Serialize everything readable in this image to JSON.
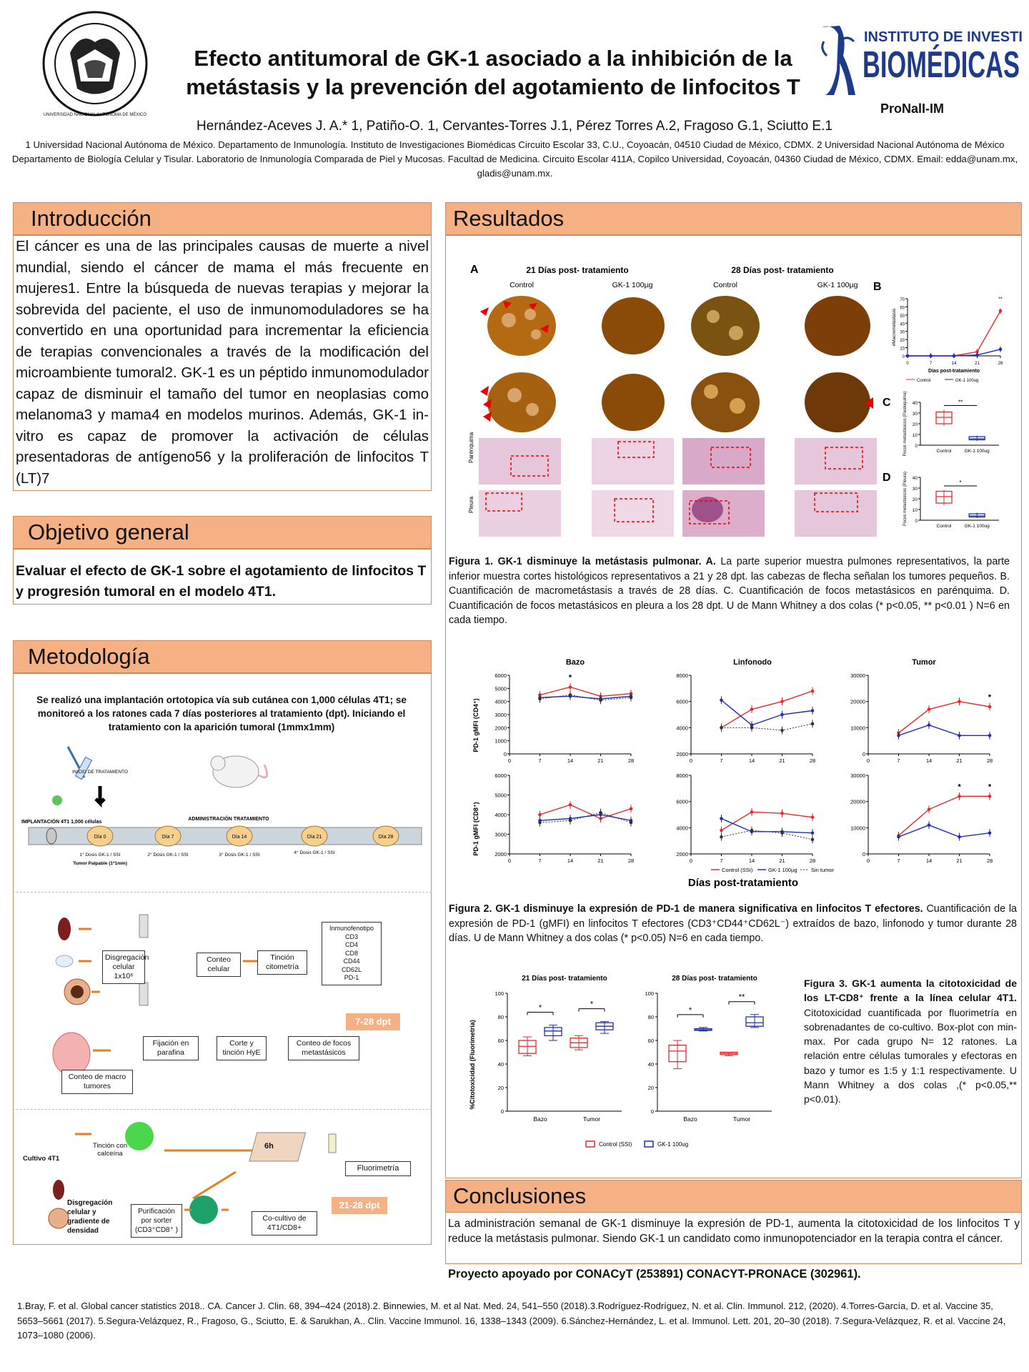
{
  "header": {
    "title_line1": "Efecto antitumoral de GK-1 asociado a la inhibición de la",
    "title_line2": "metástasis y la prevención  del agotamiento de linfocitos T",
    "authors": "Hernández-Aceves J. A.* 1, Patiño-O. 1, Cervantes-Torres J.1, Pérez Torres A.2, Fragoso G.1, Sciutto E.1",
    "affiliation": "1 Universidad Nacional Autónoma de México. Departamento de Inmunología. Instituto de Investigaciones Biomédicas Circuito Escolar 33, C.U., Coyoacán, 04510 Ciudad de México, CDMX. 2 Universidad Nacional Autónoma de México Departamento de Biología Celular y Tisular. Laboratorio de Inmunología Comparada de Piel y Mucosas. Facultad de Medicina. Circuito Escolar 411A, Copilco Universidad, Coyoacán, 04360 Ciudad de México, CDMX. Email: edda@unam.mx, gladis@unam.mx.",
    "logo_right_line1": "INSTITUTO DE INVESTIGACIONES",
    "logo_right_line2": "BIOMÉDICAS",
    "logo_left_text": "UNIVERSIDAD NACIONAL AUTÓNOMA DE MÉXICO",
    "logo_left_motto": "POR MI RAZA HABLARÁ EL ESPÍRITU",
    "program": "ProNalI-IM"
  },
  "intro": {
    "heading": "Introducción",
    "text": "El cáncer es una de las principales causas de muerte a nivel mundial, siendo el cáncer de mama el más frecuente en mujeres1. Entre la búsqueda de nuevas terapias y mejorar la sobrevida del paciente, el uso de inmunomoduladores se ha convertido en una oportunidad para incrementar la eficiencia de terapias convencionales a través de la modificación del microambiente tumoral2. GK-1 es un péptido inmunomodulador capaz de disminuir el tamaño del tumor  en neoplasias como melanoma3 y mama4 en modelos murinos. Además, GK-1 in-vitro es capaz de promover la activación de células presentadoras de antígeno56 y la proliferación de linfocitos T (LT)7"
  },
  "objective": {
    "heading": "Objetivo general",
    "text": "Evaluar el efecto de GK-1  sobre el agotamiento de linfocitos T y progresión tumoral en el modelo 4T1."
  },
  "methods": {
    "heading": "Metodología",
    "intro": "Se realizó una implantación ortotopica vía sub cutánea con 1,000 células 4T1; se monitoreó a los ratones cada 7 días posteriores al tratamiento (dpt). Iniciando el tratamiento con la aparición tumoral (1mmx1mm)",
    "timeline": {
      "start_label": "INICIO DE TRATAMIENTO",
      "implant_label": "IMPLANTACIÓN 4T1  1,000 células",
      "treat_label": "ADMINISTRACIÓN TRATAMIENTO",
      "days": [
        "Día 0",
        "Día 7",
        "Día 14",
        "Día 21",
        "Día 28"
      ],
      "doses": [
        "1° Dosis GK-1 / SSI",
        "2° Dosis GK-1 / SSI",
        "3° Dosis GK-1 / SSI",
        "4° Dosis GK-1 / SSI"
      ],
      "palpable": "Tumor Palpable (1*1mm)"
    },
    "flow1": {
      "disgreg": "Disgregación celular 1x10⁶",
      "conteo": "Conteo celular",
      "tincion": "Tinción citometría",
      "inmuno_title": "Inmunofenotipo",
      "markers": [
        "CD3",
        "CD4",
        "CD8",
        "CD44",
        "CD62L",
        "PD-1"
      ],
      "fijacion": "Fijación en parafina",
      "corte": "Corte y tinción HyE",
      "conteo_focos": "Conteo de focos metastásicos",
      "conteo_macro": "Conteo de macro tumores",
      "badge": "7-28 dpt"
    },
    "flow2": {
      "cultivo": "Cultivo 4T1",
      "tincion_calceina": "Tinción con calceína",
      "hours": "6h",
      "fluorimetria": "Fluorimetría",
      "disgregacion": "Disgregación celular y gradiente de densidad",
      "purificacion": "Purificación por sorter (CD3⁺CD8⁺ )",
      "cocultivo": "Co-cultivo de 4T1/CD8+",
      "badge": "21-28 dpt"
    }
  },
  "results": {
    "heading": "Resultados",
    "fig1": {
      "panel_a": "A",
      "panel_b": "B",
      "panel_c": "C",
      "panel_d": "D",
      "col_21": "21 Días post- tratamiento",
      "col_28": "28 Días post- tratamiento",
      "control": "Control",
      "gk1": "GK-1 100µg",
      "row_parenquima": "Parénquima",
      "row_pleura": "Pleura",
      "caption_bold": "Figura 1. GK-1 disminuye la metástasis pulmonar. A.",
      "caption": "  La parte superior muestra pulmones representativos, la parte inferior muestra cortes histológicos representativos a 21 y 28 dpt. las cabezas de flecha señalan los tumores pequeños. B. Cuantificación de macrometástasis a través de 28 días. C. Cuantificación de focos metastásicos en parénquima. D. Cuantificación de focos metastásicos en pleura a los 28 dpt. U de Mann Whitney a dos colas (* p<0.05, ** p<0.01 ) N=6 en cada tiempo."
    },
    "fig2": {
      "col_titles": [
        "Bazo",
        "Linfonodo",
        "Tumor"
      ],
      "y_top": "PD-1 gMFI  (CD4⁺)",
      "y_bottom": "PD-1 gMFI (CD8⁺)",
      "x_title": "Días post-tratamiento",
      "legend": [
        "Control (SSI)",
        "GK-1 100µg",
        "Sin tumor"
      ],
      "caption_bold": "Figura 2. GK-1 disminuye la expresión de PD-1 de manera significativa en linfocitos T efectores.",
      "caption": " Cuantificación de la expresión de PD-1 (gMFI) en linfocitos T efectores (CD3⁺CD44⁺CD62L⁻) extraídos de bazo, linfonodo y tumor durante 28 días. U de Mann Whitney a dos colas (* p<0.05) N=6 en cada tiempo."
    },
    "fig3": {
      "title_21": "21 Días post- tratamiento",
      "title_28": "28 Días post- tratamiento",
      "ylabel": "%Citotoxicidad (Fluorimetría)",
      "categories": [
        "Bazo",
        "Tumor"
      ],
      "legend": [
        "Control (SSI)",
        "GK-1 100ug"
      ],
      "caption_bold": "Figura 3. GK-1 aumenta la citotoxicidad de los LT-CD8⁺ frente a la línea celular 4T1.",
      "caption": " Citotoxicidad cuantificada por fluorimetría en sobrenadantes de co-cultivo. Box-plot con min-max. Por cada grupo N= 12 ratones. La relación entre células tumorales y efectoras en bazo y tumor es 1:5 y 1:1 respectivamente. U Mann Whitney a dos colas ,(* p<0.05,** p<0.01)."
    }
  },
  "conclusions": {
    "heading": "Conclusiones",
    "text": "La administración semanal de GK-1 disminuye la expresión de PD-1, aumenta la citotoxicidad de los linfocitos T y reduce la metástasis pulmonar. Siendo GK-1 un candidato como inmunopotenciador en la terapia contra el cáncer.",
    "funding": "Proyecto apoyado por CONACyT (253891)  CONACYT-PRONACE (302961)."
  },
  "references": "1.Bray, F. et al. Global cancer statistics 2018.. CA. Cancer J. Clin. 68, 394–424 (2018).2. Binnewies, M. et al Nat. Med. 24, 541–550 (2018).3.Rodríguez-Rodríguez, N. et al.  Clin. Immunol. 212, (2020). 4.Torres-García, D. et al. Vaccine 35, 5653–5661 (2017). 5.Segura-Velázquez, R., Fragoso, G., Sciutto, E. & Sarukhan, A.. Clin. Vaccine Immunol. 16, 1338–1343 (2009). 6.Sánchez-Hernández, L. et al. Immunol. Lett. 201, 20–30 (2018). 7.Segura-Velázquez, R. et al. Vaccine 24, 1073–1080 (2006).",
  "colors": {
    "section_header": "#f5b183",
    "control": "#e8282b",
    "gk1": "#1f2fb4",
    "sin_tumor": "#333333",
    "badge": "#f5b183"
  },
  "chart_data": [
    {
      "type": "line",
      "id": "fig1b",
      "ylabel": "#Macrometástasis",
      "xlabel": "Días post-tratamiento",
      "x": [
        0,
        7,
        14,
        21,
        28
      ],
      "ylim": [
        0,
        70
      ],
      "yticks": [
        0,
        10,
        20,
        30,
        40,
        50,
        60,
        70
      ],
      "series": [
        {
          "name": "Control",
          "values": [
            0,
            0,
            0,
            5,
            55
          ]
        },
        {
          "name": "GK-1 100ug",
          "values": [
            0,
            0,
            0,
            1,
            8
          ]
        }
      ],
      "annotations": [
        "**"
      ]
    },
    {
      "type": "box",
      "id": "fig1c",
      "ylabel": "Focos metastásicos (Parénquima)",
      "categories": [
        "Control",
        "GK-1 100ug"
      ],
      "ylim": [
        0,
        40
      ],
      "yticks": [
        0,
        10,
        20,
        30,
        40
      ],
      "boxes": [
        {
          "min": 18,
          "q1": 20,
          "median": 26,
          "q3": 31,
          "max": 33
        },
        {
          "min": 4,
          "q1": 5,
          "median": 6,
          "q3": 8,
          "max": 9
        }
      ],
      "annotations": [
        "**"
      ]
    },
    {
      "type": "box",
      "id": "fig1d",
      "ylabel": "Focos metastásicos (Pleura)",
      "categories": [
        "Control",
        "GK-1 100ug"
      ],
      "ylim": [
        0,
        40
      ],
      "yticks": [
        0,
        10,
        20,
        30,
        40
      ],
      "boxes": [
        {
          "min": 14,
          "q1": 16,
          "median": 22,
          "q3": 27,
          "max": 28
        },
        {
          "min": 2,
          "q1": 3,
          "median": 4,
          "q3": 6,
          "max": 7
        }
      ],
      "annotations": [
        "*"
      ]
    },
    {
      "type": "line",
      "id": "fig2-bazo-cd4",
      "title": "Bazo",
      "x": [
        7,
        14,
        21,
        28
      ],
      "ylim": [
        0,
        6000
      ],
      "yticks": [
        0,
        1000,
        2000,
        3000,
        4000,
        5000,
        6000
      ],
      "series": [
        {
          "name": "Control (SSI)",
          "values": [
            4500,
            5100,
            4400,
            4600
          ]
        },
        {
          "name": "GK-1 100µg",
          "values": [
            4300,
            4400,
            4200,
            4400
          ]
        },
        {
          "name": "Sin tumor",
          "values": [
            4200,
            4500,
            4100,
            4300
          ]
        }
      ],
      "annotations": [
        {
          "x": 14,
          "text": "*"
        }
      ]
    },
    {
      "type": "line",
      "id": "fig2-linfonodo-cd4",
      "title": "Linfonodo",
      "x": [
        7,
        14,
        21,
        28
      ],
      "ylim": [
        2000,
        8000
      ],
      "yticks": [
        2000,
        4000,
        6000,
        8000
      ],
      "series": [
        {
          "name": "Control (SSI)",
          "values": [
            4000,
            5400,
            6000,
            6800
          ]
        },
        {
          "name": "GK-1 100µg",
          "values": [
            6100,
            4200,
            5000,
            5300
          ]
        },
        {
          "name": "Sin tumor",
          "values": [
            4000,
            4000,
            3800,
            4300
          ]
        }
      ],
      "annotations": []
    },
    {
      "type": "line",
      "id": "fig2-tumor-cd4",
      "title": "Tumor",
      "x": [
        7,
        14,
        21,
        28
      ],
      "ylim": [
        0,
        30000
      ],
      "yticks": [
        0,
        10000,
        20000,
        30000
      ],
      "series": [
        {
          "name": "Control (SSI)",
          "values": [
            8000,
            17000,
            20000,
            18000
          ]
        },
        {
          "name": "GK-1 100µg",
          "values": [
            7000,
            11000,
            7000,
            7000
          ]
        }
      ],
      "annotations": [
        {
          "x": 28,
          "text": "*"
        }
      ]
    },
    {
      "type": "line",
      "id": "fig2-bazo-cd8",
      "x": [
        7,
        14,
        21,
        28
      ],
      "ylim": [
        2000,
        6000
      ],
      "yticks": [
        2000,
        3000,
        4000,
        5000,
        6000
      ],
      "series": [
        {
          "name": "Control (SSI)",
          "values": [
            4000,
            4500,
            3800,
            4300
          ]
        },
        {
          "name": "GK-1 100µg",
          "values": [
            3700,
            3800,
            4000,
            3700
          ]
        },
        {
          "name": "Sin tumor",
          "values": [
            3600,
            3700,
            4100,
            3600
          ]
        }
      ],
      "annotations": []
    },
    {
      "type": "line",
      "id": "fig2-linfonodo-cd8",
      "x": [
        7,
        14,
        21,
        28
      ],
      "ylim": [
        2000,
        8000
      ],
      "yticks": [
        2000,
        4000,
        6000,
        8000
      ],
      "series": [
        {
          "name": "Control (SSI)",
          "values": [
            3800,
            5200,
            5100,
            4800
          ]
        },
        {
          "name": "GK-1 100µg",
          "values": [
            4700,
            3700,
            3700,
            3600
          ]
        },
        {
          "name": "Sin tumor",
          "values": [
            3300,
            3800,
            3600,
            3100
          ]
        }
      ],
      "annotations": []
    },
    {
      "type": "line",
      "id": "fig2-tumor-cd8",
      "x": [
        7,
        14,
        21,
        28
      ],
      "ylim": [
        0,
        30000
      ],
      "yticks": [
        0,
        10000,
        20000,
        30000
      ],
      "series": [
        {
          "name": "Control (SSI)",
          "values": [
            7000,
            17000,
            22000,
            22000
          ]
        },
        {
          "name": "GK-1 100µg",
          "values": [
            6500,
            11000,
            6500,
            8000
          ]
        }
      ],
      "annotations": [
        {
          "x": 21,
          "text": "*"
        },
        {
          "x": 28,
          "text": "*"
        }
      ]
    },
    {
      "type": "box",
      "id": "fig3-21",
      "title": "21 Días post- tratamiento",
      "categories": [
        "Bazo",
        "Tumor"
      ],
      "ylim": [
        0,
        100
      ],
      "yticks": [
        0,
        20,
        40,
        60,
        80,
        100
      ],
      "groups": [
        {
          "control": {
            "min": 47,
            "q1": 49,
            "median": 55,
            "q3": 60,
            "max": 63
          },
          "gk1": {
            "min": 60,
            "q1": 64,
            "median": 68,
            "q3": 71,
            "max": 73
          }
        },
        {
          "control": {
            "min": 52,
            "q1": 54,
            "median": 58,
            "q3": 62,
            "max": 64
          },
          "gk1": {
            "min": 66,
            "q1": 69,
            "median": 72,
            "q3": 75,
            "max": 76
          }
        }
      ],
      "annotations": [
        "*",
        "*"
      ]
    },
    {
      "type": "box",
      "id": "fig3-28",
      "title": "28 Días post- tratamiento",
      "categories": [
        "Bazo",
        "Tumor"
      ],
      "ylim": [
        0,
        100
      ],
      "yticks": [
        0,
        20,
        40,
        60,
        80,
        100
      ],
      "groups": [
        {
          "control": {
            "min": 36,
            "q1": 42,
            "median": 51,
            "q3": 56,
            "max": 60
          },
          "gk1": {
            "min": 68,
            "q1": 68.5,
            "median": 69,
            "q3": 70,
            "max": 71
          }
        },
        {
          "control": {
            "min": 47,
            "q1": 48,
            "median": 49,
            "q3": 50,
            "max": 50
          },
          "gk1": {
            "min": 71,
            "q1": 72,
            "median": 75,
            "q3": 80,
            "max": 82
          }
        }
      ],
      "annotations": [
        "*",
        "**"
      ]
    }
  ]
}
